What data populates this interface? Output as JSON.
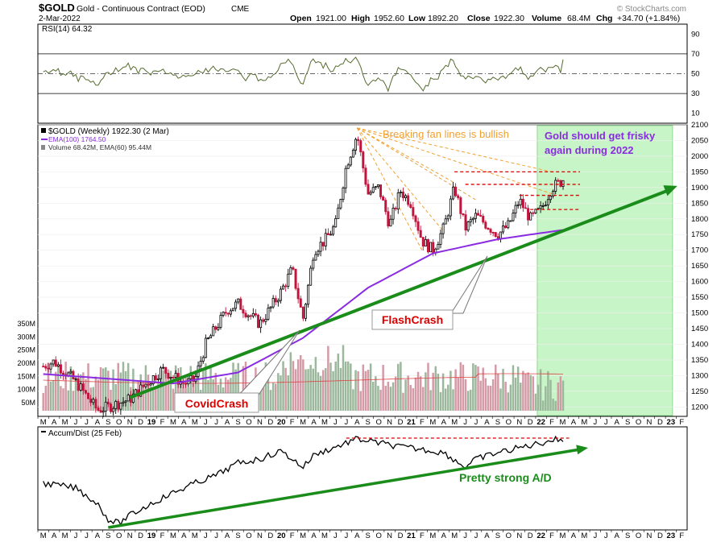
{
  "header": {
    "symbol": "$GOLD",
    "name": "Gold - Continuous Contract (EOD)",
    "exchange": "CME",
    "date": "2-Mar-2022",
    "quote": {
      "open_label": "Open",
      "open": "1921.00",
      "high_label": "High",
      "high": "1952.60",
      "low_label": "Low",
      "low": "1892.20",
      "close_label": "Close",
      "close": "1922.30",
      "volume_label": "Volume",
      "volume": "68.4M",
      "chg_label": "Chg",
      "chg": "+34.70 (+1.84%)"
    },
    "copyright": "© StockCharts.com"
  },
  "colors": {
    "up": "#000000",
    "down": "#c0143c",
    "ema100": "#8a2be2",
    "trend": "#1a8c1a",
    "fan": "#f0a030",
    "resistance": "#dd0000",
    "highlight": "#c8f5c8",
    "vol_up": "#9cb89c",
    "vol_down": "#d49aa6",
    "rsi_line": "#556b2f",
    "ema60_vol": "#dd4444"
  },
  "rsi_panel": {
    "label": "RSI(14) 64.32",
    "ticks": [
      "90",
      "70",
      "50",
      "30",
      "10"
    ],
    "tick_values": [
      90,
      70,
      50,
      30,
      10
    ],
    "ylim": [
      0,
      100
    ],
    "overbought": 70,
    "oversold": 30,
    "mid": 50
  },
  "price_panel": {
    "legend_title": "$GOLD (Weekly) 1922.30 (2 Mar)",
    "legend_ema": "EMA(100) 1764.50",
    "legend_volume": "Volume 68.42M, EMA(60) 95.44M",
    "y_ticks": [
      "2100",
      "2050",
      "2000",
      "1950",
      "1900",
      "1850",
      "1800",
      "1750",
      "1700",
      "1650",
      "1600",
      "1550",
      "1500",
      "1450",
      "1400",
      "1350",
      "1300",
      "1250",
      "1200"
    ],
    "volume_ticks": [
      "350M",
      "300M",
      "250M",
      "200M",
      "150M",
      "100M",
      "50M"
    ],
    "annotations": {
      "fan": "Breaking fan lines is bullish",
      "frisky_line1": "Gold should get frisky",
      "frisky_line2": "again during 2022",
      "flash": "FlashCrash",
      "covid": "CovidCrash"
    }
  },
  "ad_panel": {
    "label": "Accum/Dist (25 Feb)",
    "annotation": "Pretty strong A/D"
  },
  "x_axis": {
    "labels": [
      "M",
      "A",
      "M",
      "J",
      "J",
      "A",
      "S",
      "O",
      "N",
      "D",
      "19",
      "F",
      "M",
      "A",
      "M",
      "J",
      "J",
      "A",
      "S",
      "O",
      "N",
      "D",
      "20",
      "F",
      "M",
      "A",
      "M",
      "J",
      "J",
      "A",
      "S",
      "O",
      "N",
      "D",
      "21",
      "F",
      "M",
      "A",
      "M",
      "J",
      "J",
      "A",
      "S",
      "O",
      "N",
      "D",
      "22",
      "F",
      "M",
      "A",
      "M",
      "J",
      "J",
      "A",
      "S",
      "O",
      "N",
      "D",
      "23",
      "F"
    ],
    "bold_labels": [
      "19",
      "20",
      "21",
      "22",
      "23"
    ]
  },
  "chart_data": {
    "type": "candlestick",
    "title": "$GOLD (Weekly)",
    "x_range": [
      "2018-03",
      "2023-02"
    ],
    "ylim": [
      1170,
      2100
    ],
    "price_anchors": [
      {
        "date": "2018-03",
        "close": 1330
      },
      {
        "date": "2018-04",
        "close": 1345
      },
      {
        "date": "2018-06",
        "close": 1280
      },
      {
        "date": "2018-08",
        "close": 1190
      },
      {
        "date": "2018-09",
        "close": 1200
      },
      {
        "date": "2018-11",
        "close": 1225
      },
      {
        "date": "2019-01",
        "close": 1290
      },
      {
        "date": "2019-02",
        "close": 1320
      },
      {
        "date": "2019-04",
        "close": 1275
      },
      {
        "date": "2019-05",
        "close": 1285
      },
      {
        "date": "2019-06",
        "close": 1400
      },
      {
        "date": "2019-08",
        "close": 1510
      },
      {
        "date": "2019-09",
        "close": 1530
      },
      {
        "date": "2019-10",
        "close": 1495
      },
      {
        "date": "2019-11",
        "close": 1465
      },
      {
        "date": "2019-12",
        "close": 1515
      },
      {
        "date": "2020-01",
        "close": 1570
      },
      {
        "date": "2020-02",
        "close": 1640
      },
      {
        "date": "2020-03",
        "close": 1480
      },
      {
        "date": "2020-04",
        "close": 1700
      },
      {
        "date": "2020-05",
        "close": 1730
      },
      {
        "date": "2020-06",
        "close": 1780
      },
      {
        "date": "2020-07",
        "close": 1970
      },
      {
        "date": "2020-08",
        "close": 2070
      },
      {
        "date": "2020-09",
        "close": 1880
      },
      {
        "date": "2020-10",
        "close": 1900
      },
      {
        "date": "2020-11",
        "close": 1780
      },
      {
        "date": "2020-12",
        "close": 1890
      },
      {
        "date": "2021-01",
        "close": 1850
      },
      {
        "date": "2021-02",
        "close": 1730
      },
      {
        "date": "2021-03",
        "close": 1700
      },
      {
        "date": "2021-04",
        "close": 1770
      },
      {
        "date": "2021-05",
        "close": 1900
      },
      {
        "date": "2021-06",
        "close": 1770
      },
      {
        "date": "2021-07",
        "close": 1810
      },
      {
        "date": "2021-08",
        "close": 1780
      },
      {
        "date": "2021-09",
        "close": 1750
      },
      {
        "date": "2021-10",
        "close": 1780
      },
      {
        "date": "2021-11",
        "close": 1860
      },
      {
        "date": "2021-12",
        "close": 1800
      },
      {
        "date": "2022-01",
        "close": 1830
      },
      {
        "date": "2022-02",
        "close": 1900
      },
      {
        "date": "2022-03",
        "close": 1922
      }
    ],
    "ema100_anchors": [
      {
        "date": "2018-03",
        "value": 1305
      },
      {
        "date": "2018-09",
        "value": 1290
      },
      {
        "date": "2019-03",
        "value": 1275
      },
      {
        "date": "2019-09",
        "value": 1310
      },
      {
        "date": "2020-03",
        "value": 1420
      },
      {
        "date": "2020-09",
        "value": 1580
      },
      {
        "date": "2021-03",
        "value": 1690
      },
      {
        "date": "2021-09",
        "value": 1735
      },
      {
        "date": "2022-03",
        "value": 1764.5
      }
    ],
    "horizontal_levels": [
      1950,
      1910,
      1875,
      1830
    ],
    "trendline": {
      "from": {
        "date": "2018-11",
        "value": 1230
      },
      "to": {
        "date": "2023-01",
        "value": 1905
      }
    },
    "highlight_range": [
      "2022-01",
      "2023-01"
    ],
    "rsi_last": 64.32,
    "volume_ema60_last": "95.44M",
    "volume_last": "68.42M"
  }
}
